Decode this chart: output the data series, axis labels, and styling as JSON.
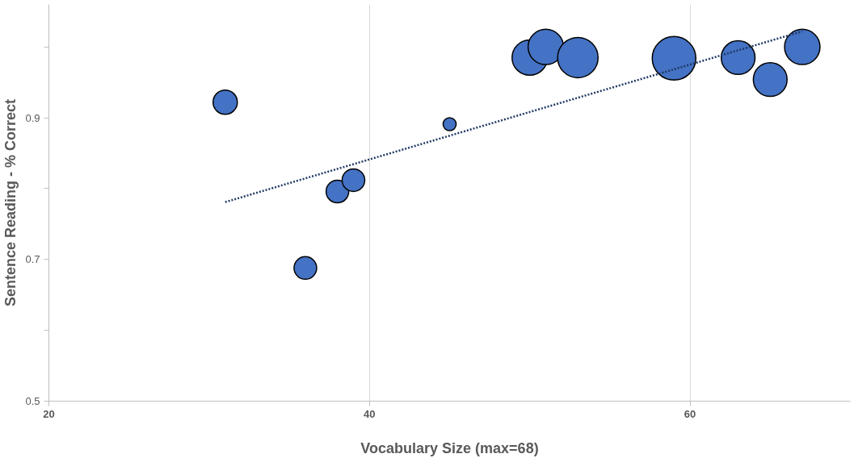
{
  "chart_data": {
    "type": "bubble",
    "xlabel": "Vocabulary Size (max=68)",
    "ylabel": "Sentence Reading - % Correct",
    "xlim": [
      20,
      70
    ],
    "ylim": [
      0.5,
      1.06
    ],
    "xticks": [
      20,
      40,
      60
    ],
    "yticks": [
      0.5,
      {
        "value": 0.6,
        "label": null
      },
      0.7,
      {
        "value": 0.8,
        "label": null
      },
      0.9,
      {
        "value": 1.0,
        "label": null
      }
    ],
    "grid": "x",
    "series": [
      {
        "color": "#4472c4",
        "x": [
          31,
          36,
          38,
          39,
          45,
          50,
          51,
          53,
          59,
          63,
          65,
          67
        ],
        "values": [
          0.922,
          0.688,
          0.796,
          0.812,
          0.891,
          0.985,
          1.0,
          0.985,
          0.984,
          0.985,
          0.954,
          1.0
        ],
        "sizes": [
          0.31,
          0.27,
          0.27,
          0.27,
          0.09,
          0.66,
          0.66,
          0.86,
          1,
          0.6,
          0.6,
          0.66
        ]
      },
      {
        "type": "line",
        "color": "#1f3864",
        "line_style": "dotted",
        "x": [
          31,
          67
        ],
        "values": [
          0.781,
          1.022
        ]
      }
    ]
  }
}
